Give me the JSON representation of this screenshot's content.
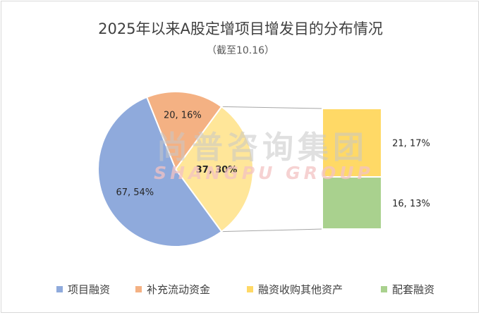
{
  "chart_data": {
    "type": "pie",
    "subtype": "bar-of-pie",
    "title": "2025年以来A股定增项目增发目的分布情况",
    "subtitle": "（截至10.16）",
    "slices": [
      {
        "name": "项目融资",
        "value": 67,
        "percent": 54,
        "label": "67, 54%",
        "color": "#8faadc"
      },
      {
        "name": "补充流动资金",
        "value": 20,
        "percent": 16,
        "label": "20, 16%",
        "color": "#f4b183"
      }
    ],
    "other_slice": {
      "value": 37,
      "percent": 30,
      "label": "37, 30%",
      "color": "#ffe699"
    },
    "breakdown": [
      {
        "name": "融资收购其他资产",
        "value": 21,
        "percent": 17,
        "label": "21, 17%",
        "color": "#ffd966"
      },
      {
        "name": "配套融资",
        "value": 16,
        "percent": 13,
        "label": "16, 13%",
        "color": "#a9d18e"
      }
    ],
    "legend": [
      {
        "name": "项目融资",
        "color": "#8faadc"
      },
      {
        "name": "补充流动资金",
        "color": "#f4b183"
      },
      {
        "name": "融资收购其他资产",
        "color": "#ffd966"
      },
      {
        "name": "配套融资",
        "color": "#a9d18e"
      }
    ],
    "legend_position": "bottom"
  },
  "watermark": {
    "cn": "尚普咨询集团",
    "en": "SHANGPU GROUP"
  }
}
